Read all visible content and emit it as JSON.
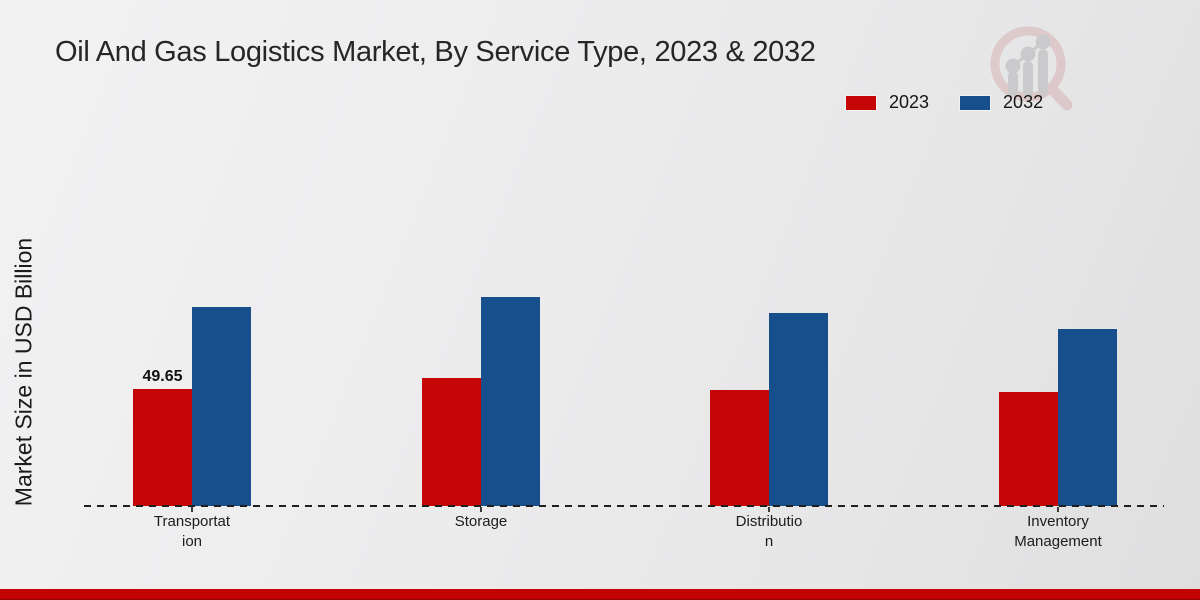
{
  "title": "Oil And Gas Logistics Market, By Service Type, 2023 & 2032",
  "y_axis_label": "Market Size in USD Billion",
  "legend": {
    "position": "top-right",
    "items": [
      {
        "label": "2023",
        "color": "#c60606"
      },
      {
        "label": "2032",
        "color": "#174f8c"
      }
    ]
  },
  "watermark_icon": "magnifier-bar-chart-logo",
  "footer_bar_color": "#c40404",
  "chart_data": {
    "type": "bar",
    "title": "Oil And Gas Logistics Market, By Service Type, 2023 & 2032",
    "xlabel": "",
    "ylabel": "Market Size in USD Billion",
    "categories": [
      "Transportation",
      "Storage",
      "Distribution",
      "Inventory Management"
    ],
    "category_label_lines": [
      [
        "Transportat",
        "ion"
      ],
      [
        "Storage"
      ],
      [
        "Distributio",
        "n"
      ],
      [
        "Inventory",
        "Management"
      ]
    ],
    "series": [
      {
        "name": "2023",
        "color": "#c60606",
        "values": [
          49.65,
          54.0,
          48.9,
          48.1
        ]
      },
      {
        "name": "2032",
        "color": "#174f8c",
        "values": [
          83.9,
          88.3,
          81.6,
          75.0
        ]
      }
    ],
    "data_labels": [
      {
        "series_index": 0,
        "category_index": 0,
        "text": "49.65"
      }
    ],
    "ylim": [
      0,
      95
    ],
    "grid": false,
    "legend_position": "top-right",
    "baseline_style": "dashed",
    "bar_value_unit": "USD Billion"
  }
}
